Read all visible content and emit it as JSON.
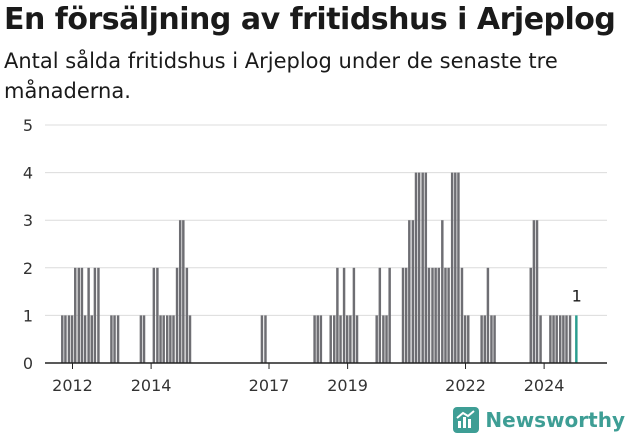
{
  "header": {
    "title": "En försäljning av fritidshus i Arjeplog",
    "subtitle": "Antal sålda fritidshus i Arjeplog under de senaste tre månaderna."
  },
  "brand": {
    "name": "Newsworthy"
  },
  "colors": {
    "bar": "#6e6e73",
    "highlight": "#2a9d8f",
    "grid": "#dcdcdc",
    "axis": "#222222"
  },
  "chart_data": {
    "type": "bar",
    "title": "En försäljning av fritidshus i Arjeplog",
    "subtitle": "Antal sålda fritidshus i Arjeplog under de senaste tre månaderna.",
    "xlabel": "",
    "ylabel": "",
    "ylim": [
      0,
      5
    ],
    "yticks": [
      "0",
      "1",
      "2",
      "3",
      "4",
      "5"
    ],
    "grid": true,
    "xlim": [
      2011.3,
      2025.6
    ],
    "xticks": [
      {
        "value": 2012,
        "label": "2012"
      },
      {
        "value": 2014,
        "label": "2014"
      },
      {
        "value": 2017,
        "label": "2017"
      },
      {
        "value": 2019,
        "label": "2019"
      },
      {
        "value": 2022,
        "label": "2022"
      },
      {
        "value": 2024,
        "label": "2024"
      }
    ],
    "bar_width_years": 0.083,
    "annotation": {
      "text": "1",
      "x": 2024.83,
      "value": 1
    },
    "series": [
      {
        "name": "Sålda fritidshus",
        "x": [
          2011.75,
          2011.83,
          2011.92,
          2012.0,
          2012.08,
          2012.17,
          2012.25,
          2012.33,
          2012.42,
          2012.5,
          2012.58,
          2012.67,
          2013.0,
          2013.08,
          2013.17,
          2013.75,
          2013.83,
          2014.08,
          2014.17,
          2014.25,
          2014.33,
          2014.42,
          2014.5,
          2014.58,
          2014.67,
          2014.75,
          2014.83,
          2014.92,
          2015.0,
          2016.83,
          2016.92,
          2018.17,
          2018.25,
          2018.33,
          2018.58,
          2018.67,
          2018.75,
          2018.83,
          2018.92,
          2019.0,
          2019.08,
          2019.17,
          2019.25,
          2019.75,
          2019.83,
          2019.92,
          2020.0,
          2020.08,
          2020.42,
          2020.5,
          2020.58,
          2020.67,
          2020.75,
          2020.83,
          2020.92,
          2021.0,
          2021.08,
          2021.17,
          2021.25,
          2021.33,
          2021.42,
          2021.5,
          2021.58,
          2021.67,
          2021.75,
          2021.83,
          2021.92,
          2022.0,
          2022.08,
          2022.42,
          2022.5,
          2022.58,
          2022.67,
          2022.75,
          2023.67,
          2023.75,
          2023.83,
          2023.92,
          2024.17,
          2024.25,
          2024.33,
          2024.42,
          2024.5,
          2024.58,
          2024.67,
          2024.83
        ],
        "values": [
          1,
          1,
          1,
          1,
          2,
          2,
          2,
          1,
          2,
          1,
          2,
          2,
          1,
          1,
          1,
          1,
          1,
          2,
          2,
          1,
          1,
          1,
          1,
          1,
          2,
          3,
          3,
          2,
          1,
          1,
          1,
          1,
          1,
          1,
          1,
          1,
          2,
          1,
          2,
          1,
          1,
          2,
          1,
          1,
          2,
          1,
          1,
          2,
          2,
          2,
          3,
          3,
          4,
          4,
          4,
          4,
          2,
          2,
          2,
          2,
          3,
          2,
          2,
          4,
          4,
          4,
          2,
          1,
          1,
          1,
          1,
          2,
          1,
          1,
          2,
          3,
          3,
          1,
          1,
          1,
          1,
          1,
          1,
          1,
          1,
          1
        ]
      }
    ]
  }
}
